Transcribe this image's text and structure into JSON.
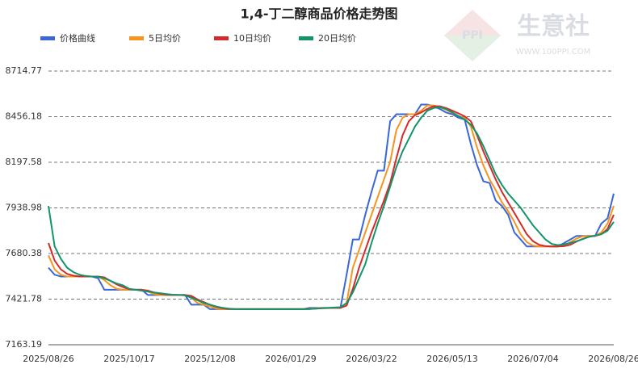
{
  "chart_data": {
    "type": "line",
    "title": "1,4-丁二醇商品价格走势图",
    "watermark": "生意社",
    "watermark_url": "WWW.100PPI.COM",
    "watermark_logo": "PPI",
    "categories": [
      "2025/08/26",
      null,
      null,
      null,
      null,
      null,
      null,
      null,
      null,
      null,
      null,
      null,
      null,
      "2025/10/17",
      null,
      null,
      null,
      null,
      null,
      null,
      null,
      null,
      null,
      null,
      null,
      null,
      "2025/12/08",
      null,
      null,
      null,
      null,
      null,
      null,
      null,
      null,
      null,
      null,
      null,
      null,
      "2026/01/29",
      null,
      null,
      null,
      null,
      null,
      null,
      null,
      null,
      null,
      null,
      null,
      null,
      "2026/03/22",
      null,
      null,
      null,
      null,
      null,
      null,
      null,
      null,
      null,
      null,
      null,
      null,
      "2026/05/13",
      null,
      null,
      null,
      null,
      null,
      null,
      null,
      null,
      null,
      null,
      null,
      null,
      "2026/07/04",
      null,
      null,
      null,
      null,
      null,
      null,
      null,
      null,
      null,
      null,
      null,
      null,
      "2026/08/26"
    ],
    "series": [
      {
        "name": "价格曲线",
        "color": "#3a66d8",
        "values": [
          7600,
          7560,
          7550,
          7550,
          7550,
          7550,
          7550,
          7550,
          7540,
          7475,
          7475,
          7475,
          7475,
          7475,
          7475,
          7475,
          7445,
          7445,
          7445,
          7445,
          7445,
          7445,
          7445,
          7390,
          7390,
          7390,
          7365,
          7365,
          7365,
          7365,
          7365,
          7365,
          7365,
          7365,
          7365,
          7365,
          7365,
          7365,
          7365,
          7365,
          7365,
          7365,
          7372,
          7372,
          7372,
          7372,
          7372,
          7372,
          7560,
          7760,
          7760,
          7900,
          8030,
          8150,
          8150,
          8430,
          8470,
          8470,
          8470,
          8470,
          8525,
          8525,
          8515,
          8500,
          8480,
          8470,
          8450,
          8440,
          8300,
          8180,
          8090,
          8080,
          7980,
          7950,
          7900,
          7800,
          7760,
          7720,
          7720,
          7720,
          7720,
          7720,
          7720,
          7740,
          7760,
          7780,
          7780,
          7780,
          7780,
          7850,
          7880,
          8020
        ]
      },
      {
        "name": "5日均价",
        "color": "#f7941d",
        "values": [
          7670,
          7590,
          7560,
          7550,
          7550,
          7550,
          7550,
          7550,
          7550,
          7530,
          7500,
          7480,
          7475,
          7475,
          7475,
          7475,
          7465,
          7450,
          7445,
          7445,
          7445,
          7445,
          7445,
          7430,
          7400,
          7390,
          7380,
          7368,
          7365,
          7365,
          7365,
          7365,
          7365,
          7365,
          7365,
          7365,
          7365,
          7365,
          7365,
          7365,
          7365,
          7365,
          7367,
          7370,
          7372,
          7372,
          7372,
          7372,
          7400,
          7600,
          7700,
          7800,
          7900,
          8000,
          8100,
          8200,
          8380,
          8450,
          8470,
          8470,
          8490,
          8520,
          8520,
          8510,
          8495,
          8478,
          8460,
          8448,
          8400,
          8280,
          8180,
          8100,
          8040,
          7970,
          7920,
          7860,
          7790,
          7745,
          7725,
          7720,
          7720,
          7720,
          7720,
          7725,
          7745,
          7765,
          7778,
          7780,
          7780,
          7800,
          7850,
          7950
        ]
      },
      {
        "name": "10日均价",
        "color": "#d62a2a",
        "values": [
          7740,
          7640,
          7590,
          7565,
          7555,
          7550,
          7550,
          7550,
          7550,
          7545,
          7525,
          7505,
          7490,
          7478,
          7475,
          7475,
          7470,
          7460,
          7452,
          7447,
          7445,
          7445,
          7445,
          7440,
          7420,
          7405,
          7390,
          7378,
          7370,
          7366,
          7365,
          7365,
          7365,
          7365,
          7365,
          7365,
          7365,
          7365,
          7365,
          7365,
          7365,
          7365,
          7366,
          7368,
          7370,
          7371,
          7372,
          7372,
          7385,
          7480,
          7600,
          7700,
          7800,
          7890,
          7980,
          8080,
          8220,
          8350,
          8430,
          8465,
          8480,
          8500,
          8515,
          8515,
          8505,
          8490,
          8475,
          8458,
          8430,
          8350,
          8260,
          8180,
          8100,
          8030,
          7970,
          7910,
          7850,
          7790,
          7750,
          7730,
          7722,
          7720,
          7720,
          7722,
          7730,
          7748,
          7763,
          7775,
          7780,
          7790,
          7820,
          7900
        ]
      },
      {
        "name": "20日均价",
        "color": "#12946a",
        "values": [
          7950,
          7720,
          7650,
          7600,
          7575,
          7560,
          7553,
          7550,
          7548,
          7540,
          7525,
          7510,
          7500,
          7480,
          7475,
          7470,
          7465,
          7460,
          7455,
          7450,
          7447,
          7445,
          7443,
          7430,
          7415,
          7400,
          7390,
          7380,
          7373,
          7368,
          7366,
          7365,
          7365,
          7365,
          7365,
          7365,
          7365,
          7365,
          7365,
          7365,
          7365,
          7365,
          7366,
          7368,
          7370,
          7372,
          7374,
          7376,
          7400,
          7460,
          7540,
          7620,
          7740,
          7850,
          7950,
          8060,
          8170,
          8260,
          8330,
          8400,
          8450,
          8490,
          8505,
          8510,
          8500,
          8480,
          8460,
          8440,
          8410,
          8360,
          8290,
          8210,
          8130,
          8070,
          8020,
          7980,
          7940,
          7890,
          7840,
          7800,
          7760,
          7735,
          7728,
          7732,
          7740,
          7750,
          7762,
          7775,
          7782,
          7790,
          7810,
          7860
        ]
      }
    ],
    "ylim": [
      7163.19,
      8714.77
    ],
    "yticks": [
      7163.19,
      7421.78,
      7680.38,
      7938.98,
      8197.58,
      8456.18,
      8714.77
    ],
    "grid": true,
    "legend": "top"
  }
}
